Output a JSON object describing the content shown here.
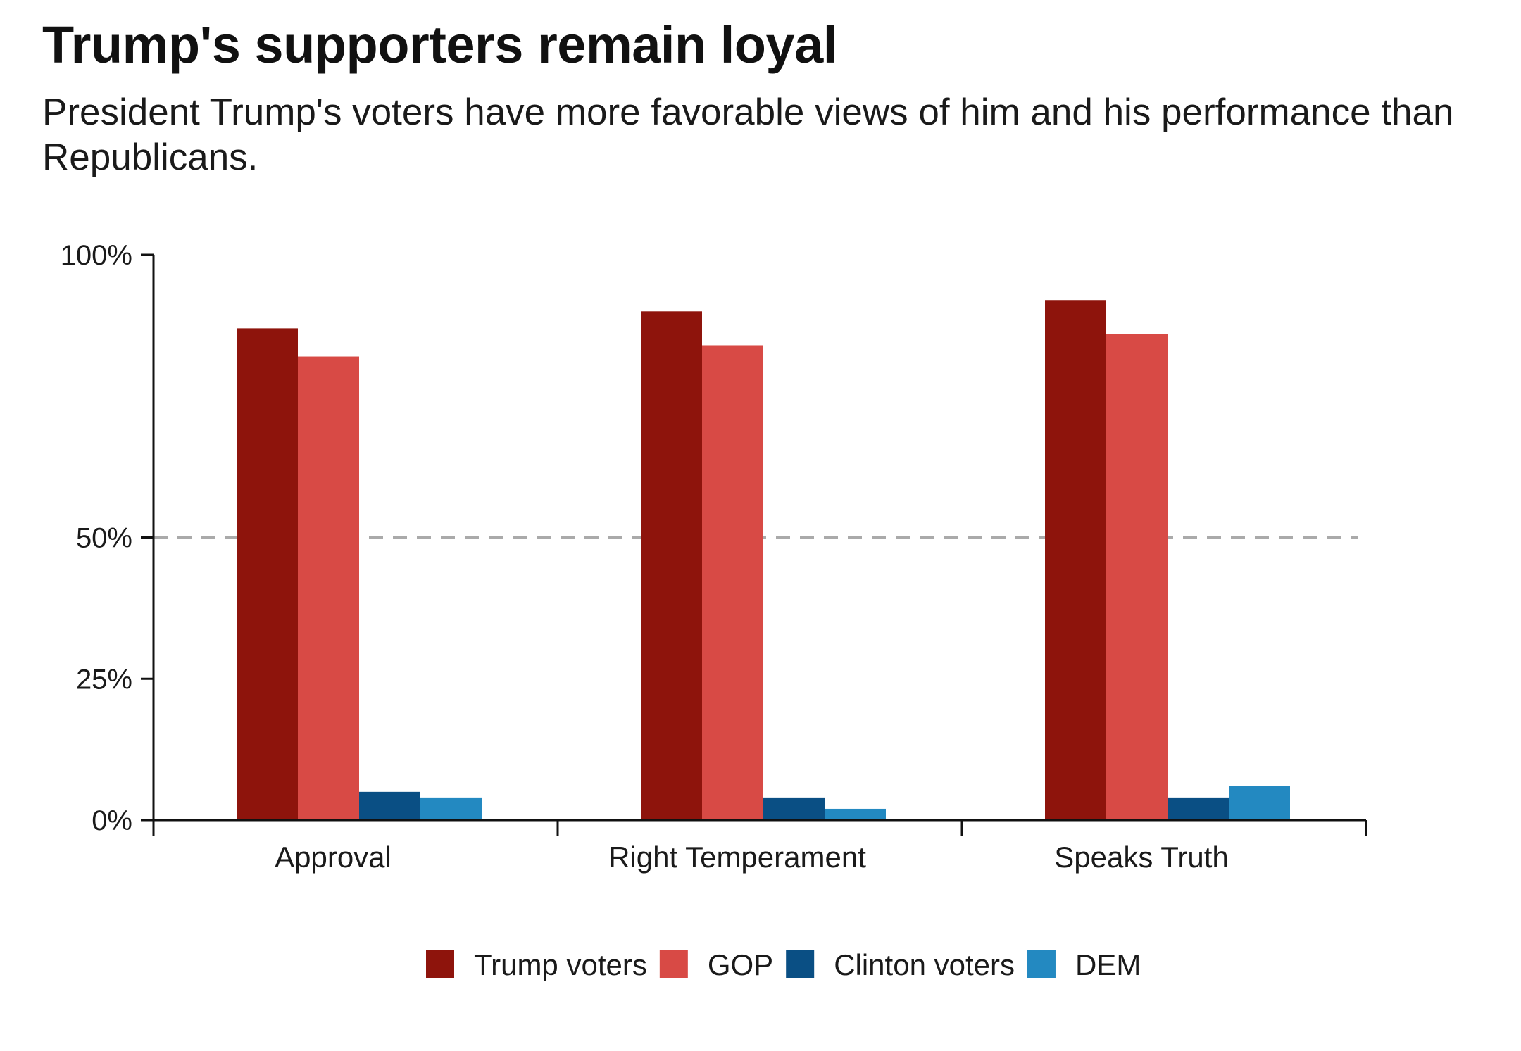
{
  "chart_data": {
    "type": "bar",
    "title": "Trump's supporters remain loyal",
    "subtitle": "President Trump's voters have more favorable views of him and his performance than Republicans.",
    "xlabel": "",
    "ylabel": "",
    "categories": [
      "Approval",
      "Right Temperament",
      "Speaks Truth"
    ],
    "series": [
      {
        "name": "Trump voters",
        "color": "#8e140c",
        "values": [
          87,
          90,
          92
        ]
      },
      {
        "name": "GOP",
        "color": "#d84a45",
        "values": [
          82,
          84,
          86
        ]
      },
      {
        "name": "Clinton voters",
        "color": "#0a4f84",
        "values": [
          5,
          4,
          4
        ]
      },
      {
        "name": "DEM",
        "color": "#2389c1",
        "values": [
          4,
          2,
          6
        ]
      }
    ],
    "ylim": [
      0,
      100
    ],
    "yticks": [
      {
        "value": 0,
        "label": "0%"
      },
      {
        "value": 25,
        "label": "25%"
      },
      {
        "value": 50,
        "label": "50%"
      },
      {
        "value": 100,
        "label": "100%"
      }
    ],
    "reference_line": {
      "value": 50,
      "style": "dashed",
      "color": "#aaaaaa"
    },
    "grid": false,
    "legend_position": "bottom-center"
  }
}
